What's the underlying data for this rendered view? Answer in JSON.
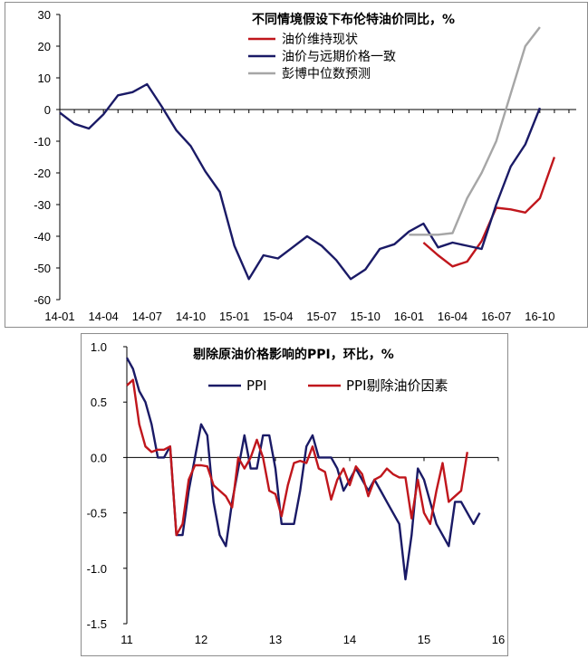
{
  "chart_data": [
    {
      "type": "line",
      "title": "不同情境假设下布伦特油价同比，%",
      "ylim": [
        -60,
        30
      ],
      "y_ticks": [
        "30",
        "20",
        "10",
        "0",
        "-10",
        "-20",
        "-30",
        "-40",
        "-50",
        "-60"
      ],
      "x_tick_labels": [
        "14-01",
        "14-04",
        "14-07",
        "14-10",
        "15-01",
        "15-04",
        "15-07",
        "15-10",
        "16-01",
        "16-04",
        "16-07",
        "16-10"
      ],
      "x_range": [
        0,
        35.5
      ],
      "legend": "top-right",
      "series": [
        {
          "name": "油价维持现状",
          "color": "#c0161c",
          "x": [
            25,
            26,
            27,
            28,
            29,
            30,
            31,
            32,
            33,
            34,
            35
          ],
          "values": [
            -42,
            -46,
            -49.5,
            -48,
            -41.5,
            -31,
            -31.5,
            -32.5,
            -28,
            -15,
            null
          ]
        },
        {
          "name": "油价与远期价格一致",
          "color": "#1a1a66",
          "x": [
            0,
            1,
            2,
            3,
            4,
            5,
            6,
            7,
            8,
            9,
            10,
            11,
            12,
            13,
            14,
            15,
            16,
            17,
            18,
            19,
            20,
            21,
            22,
            23,
            24,
            25,
            26,
            27,
            28,
            29,
            30,
            31,
            32,
            33,
            34,
            35
          ],
          "values": [
            -1,
            -4.5,
            -6,
            -1.5,
            4.5,
            5.5,
            8,
            1,
            -6.5,
            -11.5,
            -19.5,
            -26,
            -43,
            -53.5,
            -46,
            -47,
            -43.5,
            -40,
            -43,
            -47.5,
            -53.5,
            -50.5,
            -44,
            -42.5,
            -38.5,
            -36,
            -43.5,
            -42,
            -43,
            -44,
            -30,
            -18,
            -11,
            0.5,
            null,
            null
          ]
        },
        {
          "name": "彭博中位数预测",
          "color": "#a6a6a6",
          "x": [
            24,
            26,
            27,
            28,
            29,
            30,
            31,
            32,
            33,
            34,
            35
          ],
          "values": [
            -39.5,
            -39.5,
            -39,
            -28,
            -20,
            -10,
            5,
            20,
            26,
            null,
            null
          ]
        }
      ]
    },
    {
      "type": "line",
      "title": "剔除原油价格影响的PPI，环比，%",
      "ylim": [
        -1.5,
        1.0
      ],
      "y_ticks": [
        "1.0",
        "0.5",
        "0.0",
        "-0.5",
        "-1.0",
        "-1.5"
      ],
      "x_tick_labels": [
        "11",
        "12",
        "13",
        "14",
        "15",
        "16"
      ],
      "x_range": [
        0,
        60
      ],
      "legend": "top-right",
      "series": [
        {
          "name": "PPI",
          "color": "#1a1a66",
          "values": [
            0.9,
            0.8,
            0.6,
            0.5,
            0.3,
            0.0,
            0.0,
            0.1,
            -0.7,
            -0.7,
            -0.3,
            0.0,
            0.3,
            0.2,
            -0.4,
            -0.7,
            -0.8,
            -0.4,
            -0.1,
            0.2,
            -0.1,
            -0.1,
            0.2,
            0.2,
            -0.1,
            -0.6,
            -0.6,
            -0.6,
            -0.3,
            0.1,
            0.2,
            0.0,
            0.0,
            0.0,
            -0.1,
            -0.3,
            -0.2,
            -0.1,
            -0.2,
            -0.3,
            -0.2,
            -0.3,
            -0.4,
            -0.5,
            -0.6,
            -1.1,
            -0.7,
            -0.1,
            -0.2,
            -0.4,
            -0.6,
            -0.7,
            -0.8,
            -0.4,
            -0.4,
            -0.5,
            -0.6,
            -0.5
          ]
        },
        {
          "name": "PPI剔除油价因素",
          "color": "#c0161c",
          "values": [
            0.65,
            0.7,
            0.3,
            0.1,
            0.05,
            0.07,
            0.07,
            0.1,
            -0.7,
            -0.6,
            -0.2,
            -0.07,
            -0.07,
            -0.08,
            -0.25,
            -0.3,
            -0.35,
            -0.45,
            0.0,
            -0.1,
            0.0,
            0.16,
            0.0,
            -0.3,
            -0.33,
            -0.53,
            -0.25,
            -0.05,
            -0.03,
            -0.05,
            0.1,
            -0.1,
            -0.13,
            -0.38,
            -0.2,
            -0.1,
            -0.25,
            -0.08,
            -0.15,
            -0.35,
            -0.2,
            -0.17,
            -0.1,
            -0.15,
            -0.18,
            -0.18,
            -0.55,
            -0.2,
            -0.5,
            -0.6,
            -0.3,
            -0.05,
            -0.4,
            -0.35,
            -0.3,
            0.05
          ]
        }
      ]
    }
  ]
}
